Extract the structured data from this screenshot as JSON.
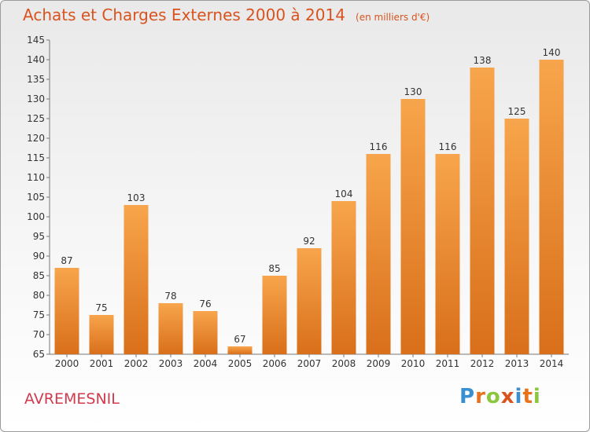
{
  "header": {
    "title": "Achats et Charges Externes 2000 à 2014",
    "unit": "(en milliers d'€)"
  },
  "footer": {
    "commune": "AVREMESNIL",
    "logo_letters": [
      "P",
      "r",
      "o",
      "x",
      "i",
      "t",
      "i"
    ],
    "logo_colors": [
      "#3a8fd0",
      "#e8731b",
      "#8cc63f",
      "#d9531e",
      "#3a8fd0",
      "#e8731b",
      "#8cc63f"
    ]
  },
  "chart_data": {
    "type": "bar",
    "title": "Achats et Charges Externes 2000 à 2014",
    "xlabel": "",
    "ylabel": "",
    "categories": [
      "2000",
      "2001",
      "2002",
      "2003",
      "2004",
      "2005",
      "2006",
      "2007",
      "2008",
      "2009",
      "2010",
      "2011",
      "2012",
      "2013",
      "2014"
    ],
    "values": [
      87,
      75,
      103,
      78,
      76,
      67,
      85,
      92,
      104,
      116,
      130,
      116,
      138,
      125,
      140
    ],
    "ylim": [
      65,
      145
    ],
    "yticks": [
      "65",
      "70",
      "75",
      "80",
      "85",
      "90",
      "95",
      "100",
      "105",
      "110",
      "115",
      "120",
      "125",
      "130",
      "135",
      "140",
      "145"
    ],
    "grid": false,
    "legend": "none",
    "bar_color_top": "#f7a54c",
    "bar_color_bottom": "#d96f1a"
  }
}
